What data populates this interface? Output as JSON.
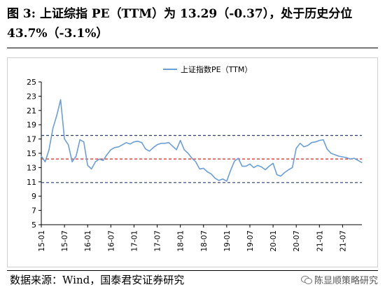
{
  "figure": {
    "title": "图 3:  上证综指 PE（TTM）为 13.29（-0.37），处于历史分位 43.7%（-3.1%）",
    "source": "数据来源：Wind，国泰君安证券研究",
    "watermark": "陈显顺策略研究",
    "watermark_icon": "wechat-icon"
  },
  "chart_data": {
    "type": "line",
    "title": "",
    "xlabel": "",
    "ylabel": "",
    "ylim": [
      5,
      25
    ],
    "yticks": [
      5,
      7,
      9,
      11,
      13,
      15,
      17,
      19,
      21,
      23,
      25
    ],
    "xlim": [
      "2015-01",
      "2021-12"
    ],
    "xticks": [
      "15-01",
      "15-07",
      "16-01",
      "16-07",
      "17-01",
      "17-07",
      "18-01",
      "18-07",
      "19-01",
      "19-07",
      "20-01",
      "20-07",
      "21-01",
      "21-07"
    ],
    "grid": false,
    "legend": {
      "position": "top-center"
    },
    "series": [
      {
        "name": "上证指数PE（TTM）",
        "color": "#6a9fd8",
        "x": [
          "2015-01",
          "2015-02",
          "2015-03",
          "2015-04",
          "2015-05",
          "2015-06",
          "2015-07",
          "2015-08",
          "2015-09",
          "2015-10",
          "2015-11",
          "2015-12",
          "2016-01",
          "2016-02",
          "2016-03",
          "2016-04",
          "2016-05",
          "2016-06",
          "2016-07",
          "2016-08",
          "2016-09",
          "2016-10",
          "2016-11",
          "2016-12",
          "2017-01",
          "2017-02",
          "2017-03",
          "2017-04",
          "2017-05",
          "2017-06",
          "2017-07",
          "2017-08",
          "2017-09",
          "2017-10",
          "2017-11",
          "2017-12",
          "2018-01",
          "2018-02",
          "2018-03",
          "2018-04",
          "2018-05",
          "2018-06",
          "2018-07",
          "2018-08",
          "2018-09",
          "2018-10",
          "2018-11",
          "2018-12",
          "2019-01",
          "2019-02",
          "2019-03",
          "2019-04",
          "2019-05",
          "2019-06",
          "2019-07",
          "2019-08",
          "2019-09",
          "2019-10",
          "2019-11",
          "2019-12",
          "2020-01",
          "2020-02",
          "2020-03",
          "2020-04",
          "2020-05",
          "2020-06",
          "2020-07",
          "2020-08",
          "2020-09",
          "2020-10",
          "2020-11",
          "2020-12",
          "2021-01",
          "2021-02",
          "2021-03",
          "2021-04",
          "2021-05",
          "2021-06",
          "2021-07",
          "2021-08",
          "2021-09",
          "2021-10",
          "2021-11",
          "2021-12"
        ],
        "values": [
          14.6,
          13.8,
          15.5,
          18.5,
          20.3,
          22.5,
          17.0,
          16.2,
          13.8,
          14.6,
          16.9,
          16.6,
          13.3,
          12.8,
          13.8,
          14.2,
          14.0,
          14.8,
          15.5,
          15.8,
          15.9,
          16.2,
          16.5,
          16.3,
          16.6,
          16.7,
          16.5,
          15.6,
          15.3,
          15.8,
          16.2,
          16.4,
          16.4,
          16.5,
          16.0,
          15.5,
          16.8,
          15.5,
          15.0,
          14.3,
          13.8,
          12.8,
          12.9,
          12.4,
          12.1,
          11.5,
          11.2,
          11.4,
          11.1,
          12.6,
          13.9,
          14.3,
          13.2,
          13.2,
          13.5,
          13.0,
          13.3,
          13.1,
          12.7,
          13.2,
          13.6,
          12.0,
          11.8,
          12.3,
          12.7,
          13.0,
          15.7,
          16.4,
          15.9,
          16.1,
          16.5,
          16.6,
          16.8,
          16.9,
          15.6,
          15.0,
          14.8,
          14.6,
          14.5,
          14.4,
          14.2,
          14.3,
          14.0,
          13.7
        ]
      }
    ],
    "reference_lines": [
      {
        "value": 17.5,
        "color": "#2f3f73",
        "style": "dashed"
      },
      {
        "value": 14.2,
        "color": "#e0201b",
        "style": "dashed"
      },
      {
        "value": 10.9,
        "color": "#2f3f73",
        "style": "dashed"
      }
    ]
  }
}
